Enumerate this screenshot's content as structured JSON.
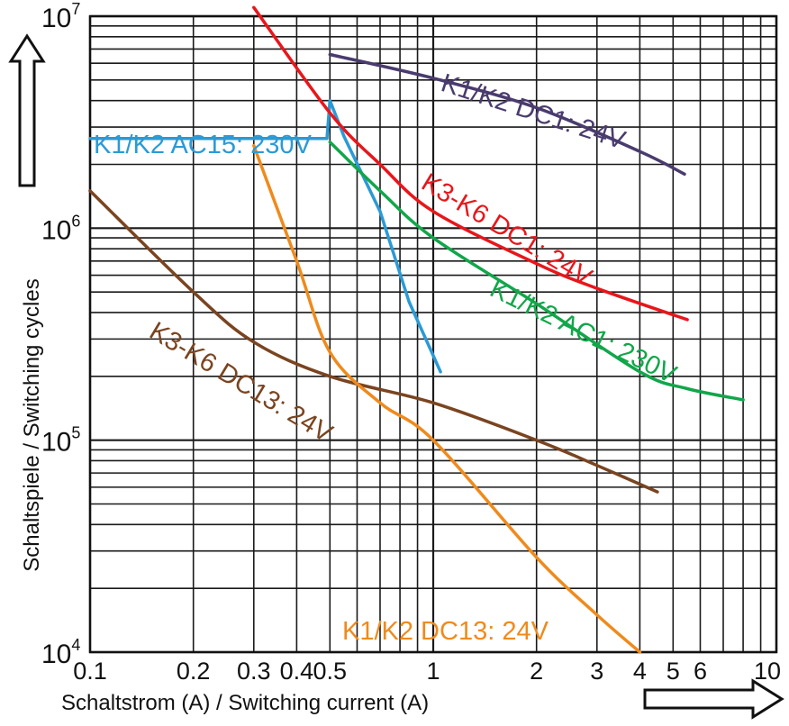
{
  "chart_data": {
    "type": "line",
    "xlabel": "Schaltstrom (A) / Switching current (A)",
    "ylabel": "Schaltspiele / Switching cycles",
    "x_scale": "log",
    "y_scale": "log",
    "xlim": [
      0.1,
      10
    ],
    "ylim": [
      10000,
      10000000
    ],
    "grid": true,
    "x_ticks": [
      {
        "value": 0.1,
        "label": "0.1"
      },
      {
        "value": 0.2,
        "label": "0.2"
      },
      {
        "value": 0.3,
        "label": "0.3"
      },
      {
        "value": 0.4,
        "label": "0.4"
      },
      {
        "value": 0.5,
        "label": "0.5"
      },
      {
        "value": 1,
        "label": "1"
      },
      {
        "value": 2,
        "label": "2"
      },
      {
        "value": 3,
        "label": "3"
      },
      {
        "value": 4,
        "label": "4"
      },
      {
        "value": 5,
        "label": "5"
      },
      {
        "value": 6,
        "label": "6"
      },
      {
        "value": 10,
        "label": "10"
      }
    ],
    "y_ticks": [
      {
        "value": 10000,
        "base": "10",
        "exp": "4"
      },
      {
        "value": 100000,
        "base": "10",
        "exp": "5"
      },
      {
        "value": 1000000,
        "base": "10",
        "exp": "6"
      },
      {
        "value": 10000000,
        "base": "10",
        "exp": "7"
      }
    ],
    "series": [
      {
        "name": "K1/K2 DC1: 24V",
        "color": "#4a3b6e",
        "points": [
          [
            0.5,
            6600000
          ],
          [
            1,
            5100000
          ],
          [
            2,
            3700000
          ],
          [
            4,
            2300000
          ],
          [
            5.4,
            1800000
          ]
        ]
      },
      {
        "name": "K1/K2 AC15: 230V",
        "color": "#2b9ad6",
        "points": [
          [
            0.1,
            2650000
          ],
          [
            0.49,
            2650000
          ],
          [
            0.5,
            4000000
          ],
          [
            0.55,
            2700000
          ],
          [
            0.7,
            1200000
          ],
          [
            0.85,
            450000
          ],
          [
            1.05,
            210000
          ]
        ]
      },
      {
        "name": "K3-K6 DC1: 24V",
        "color": "#e8161b",
        "points": [
          [
            0.3,
            11000000
          ],
          [
            0.5,
            3500000
          ],
          [
            0.7,
            2000000
          ],
          [
            1,
            1200000
          ],
          [
            2,
            680000
          ],
          [
            3,
            520000
          ],
          [
            5.5,
            370000
          ]
        ]
      },
      {
        "name": "K1/K2 AC1: 230V",
        "color": "#12a64a",
        "points": [
          [
            0.5,
            2550000
          ],
          [
            0.7,
            1500000
          ],
          [
            1,
            900000
          ],
          [
            2,
            440000
          ],
          [
            4,
            210000
          ],
          [
            5.5,
            175000
          ],
          [
            8,
            155000
          ]
        ]
      },
      {
        "name": "K3-K6 DC13: 24V",
        "color": "#7a4420",
        "points": [
          [
            0.1,
            1500000
          ],
          [
            0.2,
            500000
          ],
          [
            0.3,
            290000
          ],
          [
            0.5,
            200000
          ],
          [
            1,
            150000
          ],
          [
            2,
            100000
          ],
          [
            3,
            76000
          ],
          [
            4.5,
            57000
          ]
        ]
      },
      {
        "name": "K1/K2 DC13: 24V",
        "color": "#ef8a1c",
        "points": [
          [
            0.3,
            2450000
          ],
          [
            0.4,
            700000
          ],
          [
            0.5,
            260000
          ],
          [
            0.7,
            150000
          ],
          [
            1,
            100000
          ],
          [
            2,
            28000
          ],
          [
            3,
            15000
          ],
          [
            4,
            10000
          ]
        ]
      }
    ],
    "annotations": [
      {
        "text": "K1/K2 DC1: 24V",
        "series": 0
      },
      {
        "text": "K1/K2 AC15: 230V",
        "series": 1
      },
      {
        "text": "K3-K6 DC1: 24V",
        "series": 2
      },
      {
        "text": "K1/K2 AC1: 230V",
        "series": 3
      },
      {
        "text": "K3-K6 DC13: 24V",
        "series": 4
      },
      {
        "text": "K1/K2 DC13: 24V",
        "series": 5
      }
    ]
  }
}
